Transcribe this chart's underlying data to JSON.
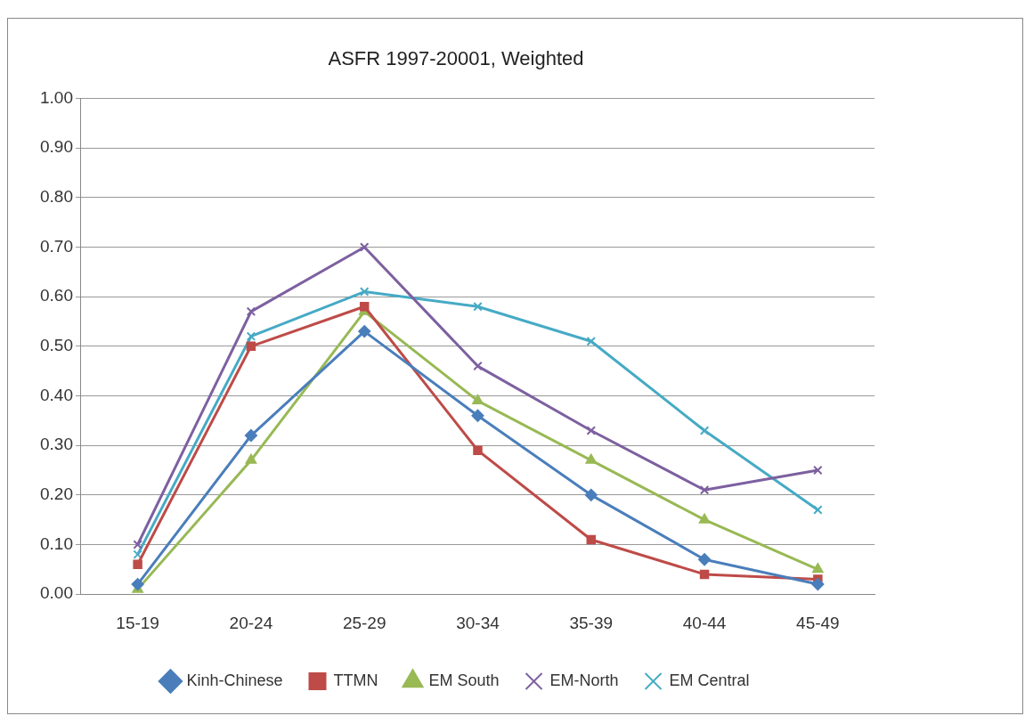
{
  "chart_data": {
    "type": "line",
    "title": "ASFR 1997-20001, Weighted",
    "categories": [
      "15-19",
      "20-24",
      "25-29",
      "30-34",
      "35-39",
      "40-44",
      "45-49"
    ],
    "series": [
      {
        "name": "Kinh-Chinese",
        "color": "#4a7ebb",
        "marker": "diamond",
        "values": [
          0.02,
          0.32,
          0.53,
          0.36,
          0.2,
          0.07,
          0.02
        ]
      },
      {
        "name": "TTMN",
        "color": "#be4b48",
        "marker": "square",
        "values": [
          0.06,
          0.5,
          0.58,
          0.29,
          0.11,
          0.04,
          0.03
        ]
      },
      {
        "name": "EM South",
        "color": "#98b954",
        "marker": "triangle",
        "values": [
          0.01,
          0.27,
          0.57,
          0.39,
          0.27,
          0.15,
          0.05
        ]
      },
      {
        "name": "EM-North",
        "color": "#7d60a0",
        "marker": "cross",
        "values": [
          0.1,
          0.57,
          0.7,
          0.46,
          0.33,
          0.21,
          0.25
        ]
      },
      {
        "name": "EM Central",
        "color": "#46aac5",
        "marker": "cross",
        "values": [
          0.08,
          0.52,
          0.61,
          0.58,
          0.51,
          0.33,
          0.17
        ]
      }
    ],
    "ylim": [
      0,
      1
    ],
    "yticks": [
      {
        "value": 0,
        "label": "0.00"
      },
      {
        "value": 0.1,
        "label": "0.10"
      },
      {
        "value": 0.2,
        "label": "0.20"
      },
      {
        "value": 0.3,
        "label": "0.30"
      },
      {
        "value": 0.4,
        "label": "0.40"
      },
      {
        "value": 0.5,
        "label": "0.50"
      },
      {
        "value": 0.6,
        "label": "0.60"
      },
      {
        "value": 0.7,
        "label": "0.70"
      },
      {
        "value": 0.8,
        "label": "0.80"
      },
      {
        "value": 0.9,
        "label": "0.90"
      },
      {
        "value": 1,
        "label": "1.00"
      }
    ],
    "grid": "y",
    "legend": "bottom",
    "line_style": "solid"
  }
}
